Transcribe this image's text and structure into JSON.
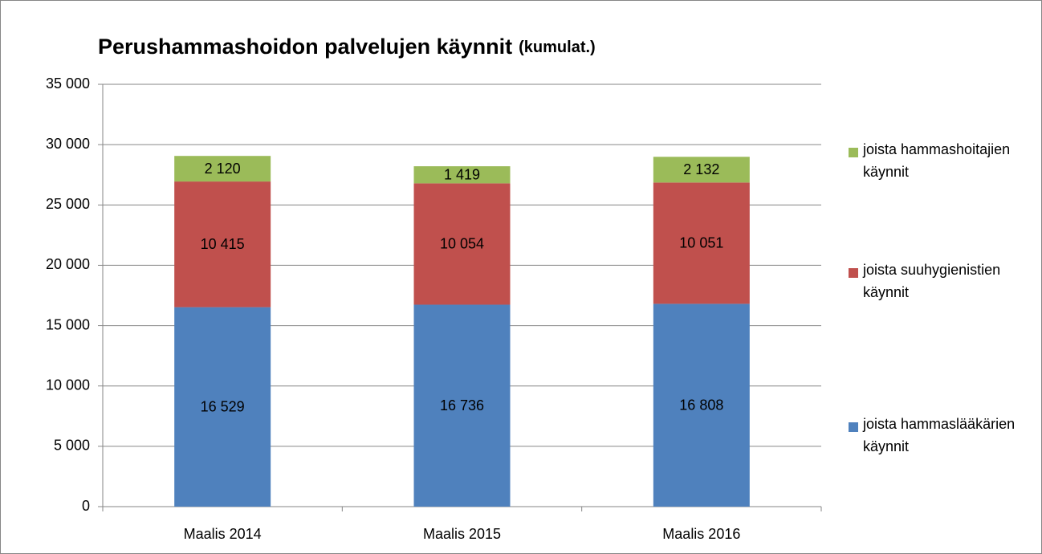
{
  "chart_data": {
    "type": "stacked_bar",
    "title": "Perushammashoidon palvelujen käynnit",
    "subtitle": "(kumulat.)",
    "categories": [
      "Maalis 2014",
      "Maalis 2015",
      "Maalis 2016"
    ],
    "series": [
      {
        "name": "joista hammaslääkärien käynnit",
        "color": "#4f81bd",
        "values": [
          16529,
          16736,
          16808
        ],
        "value_labels": [
          "16 529",
          "16 736",
          "16 808"
        ]
      },
      {
        "name": "joista suuhygienistien käynnit",
        "color": "#c0504d",
        "values": [
          10415,
          10054,
          10051
        ],
        "value_labels": [
          "10 415",
          "10 054",
          "10 051"
        ]
      },
      {
        "name": "joista hammashoitajien käynnit",
        "color": "#9bbb59",
        "values": [
          2120,
          1419,
          2132
        ],
        "value_labels": [
          "2 120",
          "1 419",
          "2 132"
        ]
      }
    ],
    "ylim": [
      0,
      35000
    ],
    "yticks": [
      {
        "value": 0,
        "label": "0"
      },
      {
        "value": 5000,
        "label": "5 000"
      },
      {
        "value": 10000,
        "label": "10 000"
      },
      {
        "value": 15000,
        "label": "15 000"
      },
      {
        "value": 20000,
        "label": "20 000"
      },
      {
        "value": 25000,
        "label": "25 000"
      },
      {
        "value": 30000,
        "label": "30 000"
      },
      {
        "value": 35000,
        "label": "35 000"
      }
    ],
    "grid": true,
    "legend": "right"
  }
}
